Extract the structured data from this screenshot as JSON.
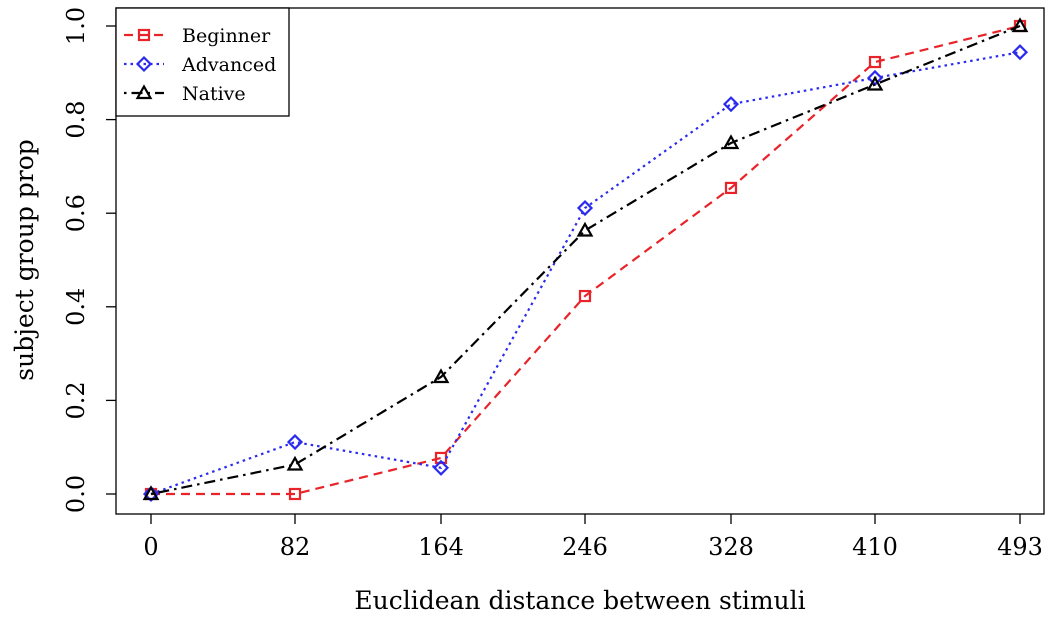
{
  "chart_data": {
    "type": "line",
    "title": "",
    "xlabel": "Euclidean distance between stimuli",
    "ylabel": "subject group prop",
    "x": [
      0,
      82,
      164,
      246,
      328,
      410,
      493
    ],
    "x_tick_labels": [
      "0",
      "82",
      "164",
      "246",
      "328",
      "410",
      "493"
    ],
    "xlim": [
      0,
      493
    ],
    "ylim": [
      0,
      1
    ],
    "y_ticks": [
      0.0,
      0.2,
      0.4,
      0.6,
      0.8,
      1.0
    ],
    "y_tick_labels": [
      "0.0",
      "0.2",
      "0.4",
      "0.6",
      "0.8",
      "1.0"
    ],
    "grid": false,
    "legend_position": "top-left",
    "series": [
      {
        "name": "Beginner",
        "color": "#e8242a",
        "line_style": "dashed",
        "marker": "square",
        "values": [
          0.0,
          0.0,
          0.077,
          0.423,
          0.654,
          0.923,
          1.0
        ]
      },
      {
        "name": "Advanced",
        "color": "#2b2bef",
        "line_style": "dotted",
        "marker": "diamond",
        "values": [
          0.0,
          0.111,
          0.056,
          0.611,
          0.833,
          0.889,
          0.944
        ]
      },
      {
        "name": "Native",
        "color": "#000000",
        "line_style": "dashdot",
        "marker": "triangle",
        "values": [
          0.0,
          0.063,
          0.25,
          0.563,
          0.75,
          0.875,
          1.0
        ]
      }
    ]
  }
}
